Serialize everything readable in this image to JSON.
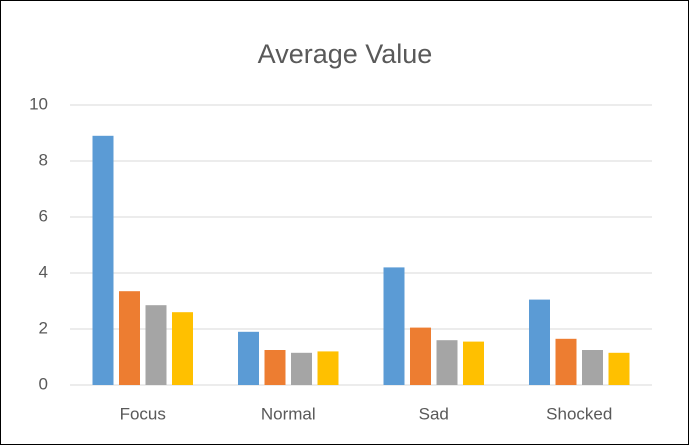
{
  "chart_data": {
    "type": "bar",
    "title": "Average Value",
    "categories": [
      "Focus",
      "Normal",
      "Sad",
      "Shocked"
    ],
    "series": [
      {
        "color": "#5b9bd5",
        "values": [
          8.9,
          1.9,
          4.2,
          3.05
        ]
      },
      {
        "color": "#ed7d31",
        "values": [
          3.35,
          1.25,
          2.05,
          1.65
        ]
      },
      {
        "color": "#a5a5a5",
        "values": [
          2.85,
          1.15,
          1.6,
          1.25
        ]
      },
      {
        "color": "#ffc000",
        "values": [
          2.6,
          1.2,
          1.55,
          1.15
        ]
      }
    ],
    "ylim": [
      0,
      10
    ],
    "yticks": [
      0,
      2,
      4,
      6,
      8,
      10
    ],
    "grid": true
  }
}
